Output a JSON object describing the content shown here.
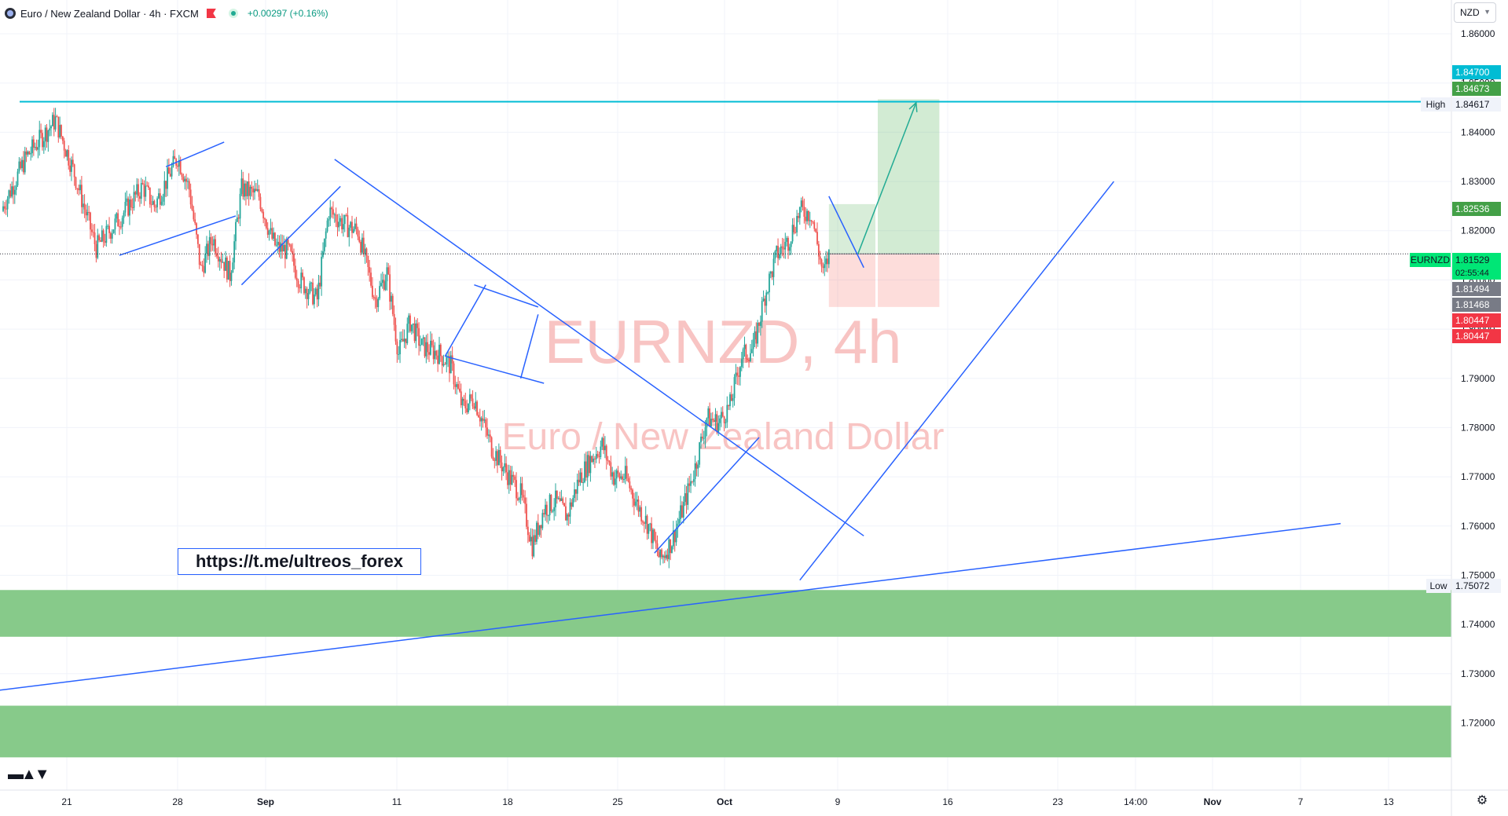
{
  "legend": {
    "title": "Euro / New Zealand Dollar · 4h · FXCM",
    "change": "+0.00297 (+0.16%)"
  },
  "currency": "NZD",
  "watermark": {
    "symbol": "EURNZD, 4h",
    "name": "Euro / New Zealand Dollar"
  },
  "link_text": "https://t.me/ultreos_forex",
  "colors": {
    "up": "#26a69a",
    "down": "#ef5350",
    "trendline": "#2962ff",
    "high_line": "#00bcd4",
    "zone": "#81c784",
    "price_tag": "#00e676"
  },
  "chart_data": {
    "type": "candlestick",
    "symbol": "EURNZD",
    "interval": "4h",
    "y_range": [
      1.7105,
      1.8632
    ],
    "y_ticks": [
      "1.86000",
      "1.85000",
      "1.84000",
      "1.83000",
      "1.82000",
      "1.81000",
      "1.80000",
      "1.79000",
      "1.78000",
      "1.77000",
      "1.76000",
      "1.75000",
      "1.74000",
      "1.73000",
      "1.72000"
    ],
    "x_ticks": [
      "21",
      "28",
      "Sep",
      "11",
      "18",
      "25",
      "Oct",
      "9",
      "16",
      "23",
      "14:00",
      "Nov",
      "7",
      "13"
    ],
    "price_labels": [
      {
        "value": "1.84700",
        "bg": "#00bcd4",
        "fg": "#ffffff"
      },
      {
        "value": "1.84673",
        "bg": "#43a047",
        "fg": "#ffffff"
      },
      {
        "value": "1.84617",
        "bg": "#f0f3fa",
        "fg": "#131722",
        "tag": "High"
      },
      {
        "value": "1.82536",
        "bg": "#43a047",
        "fg": "#ffffff"
      },
      {
        "value": "1.81529",
        "bg": "#00e676",
        "fg": "#131722",
        "tag": "EURNZD",
        "sub": "02:55:44"
      },
      {
        "value": "1.81494",
        "bg": "#787b86",
        "fg": "#ffffff"
      },
      {
        "value": "1.81468",
        "bg": "#787b86",
        "fg": "#ffffff"
      },
      {
        "value": "1.80447",
        "bg": "#f23645",
        "fg": "#ffffff"
      },
      {
        "value": "1.80447",
        "bg": "#f23645",
        "fg": "#ffffff"
      },
      {
        "value": "1.75072",
        "bg": "#f0f3fa",
        "fg": "#131722",
        "tag": "Low"
      }
    ],
    "price_path": [
      [
        0,
        1.825
      ],
      [
        4,
        1.835
      ],
      [
        9,
        1.8425
      ],
      [
        12,
        1.8325
      ],
      [
        16,
        1.8165
      ],
      [
        20,
        1.8225
      ],
      [
        24,
        1.829
      ],
      [
        26,
        1.825
      ],
      [
        30,
        1.835
      ],
      [
        32,
        1.8285
      ],
      [
        34,
        1.812
      ],
      [
        36,
        1.8185
      ],
      [
        39,
        1.811
      ],
      [
        41,
        1.8285
      ],
      [
        44,
        1.827
      ],
      [
        46,
        1.819
      ],
      [
        47,
        1.8165
      ],
      [
        49,
        1.816
      ],
      [
        51,
        1.81
      ],
      [
        54,
        1.806
      ],
      [
        56,
        1.824
      ],
      [
        59,
        1.821
      ],
      [
        61,
        1.82
      ],
      [
        64,
        1.806
      ],
      [
        66,
        1.8115
      ],
      [
        68,
        1.795
      ],
      [
        70,
        1.8015
      ],
      [
        72,
        1.7965
      ],
      [
        75,
        1.795
      ],
      [
        77,
        1.7925
      ],
      [
        79,
        1.784
      ],
      [
        81,
        1.786
      ],
      [
        84,
        1.776
      ],
      [
        87,
        1.77
      ],
      [
        89,
        1.7665
      ],
      [
        91,
        1.756
      ],
      [
        93,
        1.7635
      ],
      [
        95,
        1.765
      ],
      [
        97,
        1.762
      ],
      [
        99,
        1.7695
      ],
      [
        101,
        1.7735
      ],
      [
        103,
        1.7765
      ],
      [
        105,
        1.77
      ],
      [
        107,
        1.77
      ],
      [
        109,
        1.7645
      ],
      [
        111,
        1.76
      ],
      [
        113,
        1.753
      ],
      [
        115,
        1.757
      ],
      [
        117,
        1.764
      ],
      [
        119,
        1.772
      ],
      [
        121,
        1.782
      ],
      [
        123,
        1.781
      ],
      [
        125,
        1.7845
      ],
      [
        127,
        1.7945
      ],
      [
        129,
        1.796
      ],
      [
        131,
        1.807
      ],
      [
        133,
        1.815
      ],
      [
        135,
        1.818
      ],
      [
        137,
        1.824
      ],
      [
        139,
        1.8235
      ],
      [
        141,
        1.811
      ],
      [
        142,
        1.815
      ]
    ],
    "trendlines": [
      {
        "x1": 20,
        "x2": 40,
        "p1": 1.815,
        "p2": 1.823
      },
      {
        "x1": 28,
        "x2": 38,
        "p1": 1.833,
        "p2": 1.838
      },
      {
        "x1": 41,
        "x2": 58,
        "p1": 1.809,
        "p2": 1.829
      },
      {
        "x1": 57,
        "x2": 148,
        "p1": 1.8345,
        "p2": 1.758
      },
      {
        "x1": 76,
        "x2": 83,
        "p1": 1.7945,
        "p2": 1.809
      },
      {
        "x1": 81,
        "x2": 92,
        "p1": 1.809,
        "p2": 1.8045
      },
      {
        "x1": 76,
        "x2": 93,
        "p1": 1.7945,
        "p2": 1.789
      },
      {
        "x1": 89,
        "x2": 92,
        "p1": 1.79,
        "p2": 1.803
      },
      {
        "x1": 112,
        "x2": 130,
        "p1": 1.7545,
        "p2": 1.778
      },
      {
        "x1": 137,
        "x2": 191,
        "p1": 1.749,
        "p2": 1.83
      },
      {
        "x1": 142,
        "x2": 148,
        "p1": 1.827,
        "p2": 1.8125
      },
      {
        "x1": -5,
        "x2": 230,
        "p1": 1.726,
        "p2": 1.7605
      }
    ],
    "high_line": 1.8462,
    "zones": [
      [
        1.7375,
        1.747
      ],
      [
        1.713,
        1.7235
      ]
    ],
    "position": {
      "entry": 1.8153,
      "target": 1.8467,
      "stop": 1.8045,
      "start_bar": 142,
      "mid_bar": 150,
      "end_bar": 161
    },
    "projection_arrow": [
      [
        147,
        1.8153
      ],
      [
        157,
        1.846
      ]
    ],
    "last_price": 1.8153
  }
}
